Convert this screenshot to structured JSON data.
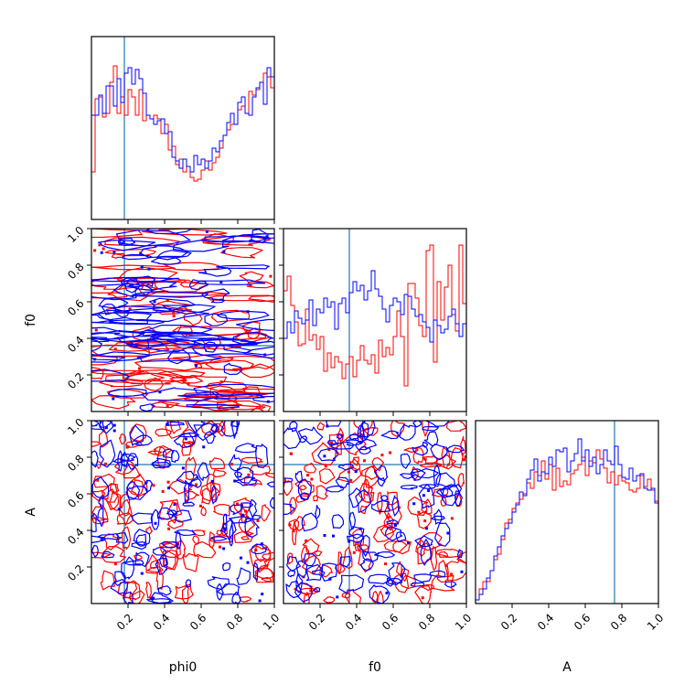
{
  "chart_data": {
    "type": "corner",
    "parameters": [
      "phi0",
      "f0",
      "A"
    ],
    "truths": {
      "phi0": 0.18,
      "f0": 0.36,
      "A": 0.76
    },
    "series_colors": {
      "red": "#ff0000",
      "blue": "#0000ff",
      "truth": "#1f77b4"
    },
    "ticks": {
      "x": [
        "0.2",
        "0.4",
        "0.6",
        "0.8",
        "1.0"
      ],
      "y": [
        "0.2",
        "0.4",
        "0.6",
        "0.8",
        "1.0"
      ]
    },
    "ranges": {
      "phi0": [
        0,
        1
      ],
      "f0": [
        0,
        1
      ],
      "A": [
        0,
        1
      ]
    },
    "marginals": {
      "phi0": {
        "red": [
          0.26,
          0.66,
          0.67,
          0.56,
          0.58,
          0.75,
          0.84,
          0.58,
          0.67,
          0.57,
          0.71,
          0.67,
          0.57,
          0.71,
          0.54,
          0.57,
          0.55,
          0.57,
          0.55,
          0.47,
          0.52,
          0.38,
          0.4,
          0.3,
          0.33,
          0.26,
          0.29,
          0.23,
          0.21,
          0.22,
          0.27,
          0.32,
          0.27,
          0.31,
          0.34,
          0.39,
          0.46,
          0.49,
          0.52,
          0.52,
          0.6,
          0.62,
          0.58,
          0.7,
          0.68,
          0.71,
          0.75,
          0.8,
          0.78,
          0.72
        ],
        "blue": [
          0.57,
          0.57,
          0.68,
          0.58,
          0.73,
          0.73,
          0.62,
          0.77,
          0.64,
          0.8,
          0.83,
          0.74,
          0.82,
          0.77,
          0.69,
          0.57,
          0.55,
          0.52,
          0.54,
          0.55,
          0.47,
          0.48,
          0.34,
          0.32,
          0.28,
          0.33,
          0.29,
          0.26,
          0.35,
          0.3,
          0.33,
          0.28,
          0.32,
          0.39,
          0.37,
          0.43,
          0.46,
          0.53,
          0.58,
          0.52,
          0.64,
          0.67,
          0.58,
          0.57,
          0.67,
          0.72,
          0.75,
          0.63,
          0.83,
          0.78
        ]
      },
      "f0": {
        "red": [
          0.66,
          0.74,
          0.58,
          0.49,
          0.36,
          0.37,
          0.56,
          0.39,
          0.42,
          0.34,
          0.41,
          0.22,
          0.32,
          0.24,
          0.3,
          0.27,
          0.18,
          0.26,
          0.3,
          0.19,
          0.28,
          0.36,
          0.28,
          0.26,
          0.31,
          0.21,
          0.39,
          0.3,
          0.35,
          0.31,
          0.41,
          0.55,
          0.41,
          0.14,
          0.7,
          0.7,
          0.62,
          0.47,
          0.41,
          0.88,
          0.91,
          0.27,
          0.71,
          0.5,
          0.68,
          0.8,
          0.53,
          0.44,
          0.91,
          0.59
        ],
        "blue": [
          0.4,
          0.49,
          0.43,
          0.55,
          0.51,
          0.48,
          0.5,
          0.61,
          0.47,
          0.56,
          0.54,
          0.62,
          0.57,
          0.6,
          0.45,
          0.59,
          0.62,
          0.54,
          0.65,
          0.71,
          0.66,
          0.69,
          0.61,
          0.66,
          0.77,
          0.67,
          0.63,
          0.56,
          0.49,
          0.58,
          0.62,
          0.6,
          0.53,
          0.64,
          0.63,
          0.56,
          0.52,
          0.53,
          0.49,
          0.46,
          0.38,
          0.5,
          0.47,
          0.43,
          0.45,
          0.52,
          0.56,
          0.48,
          0.41,
          0.48
        ]
      },
      "A": {
        "red": [
          0.02,
          0.08,
          0.12,
          0.12,
          0.18,
          0.24,
          0.27,
          0.35,
          0.44,
          0.46,
          0.52,
          0.55,
          0.57,
          0.6,
          0.66,
          0.63,
          0.72,
          0.7,
          0.78,
          0.68,
          0.76,
          0.62,
          0.74,
          0.64,
          0.67,
          0.65,
          0.71,
          0.73,
          0.76,
          0.8,
          0.7,
          0.78,
          0.77,
          0.84,
          0.79,
          0.74,
          0.66,
          0.72,
          0.65,
          0.7,
          0.67,
          0.66,
          0.62,
          0.61,
          0.63,
          0.7,
          0.64,
          0.68,
          0.62,
          0.56
        ],
        "blue": [
          0.02,
          0.05,
          0.08,
          0.14,
          0.18,
          0.26,
          0.31,
          0.37,
          0.41,
          0.44,
          0.5,
          0.54,
          0.61,
          0.59,
          0.68,
          0.73,
          0.79,
          0.67,
          0.72,
          0.71,
          0.8,
          0.75,
          0.84,
          0.83,
          0.85,
          0.72,
          0.78,
          0.82,
          0.9,
          0.78,
          0.84,
          0.75,
          0.8,
          0.71,
          0.76,
          0.84,
          0.78,
          0.76,
          0.86,
          0.76,
          0.69,
          0.68,
          0.74,
          0.67,
          0.7,
          0.71,
          0.63,
          0.62,
          0.63,
          0.55
        ]
      }
    }
  }
}
